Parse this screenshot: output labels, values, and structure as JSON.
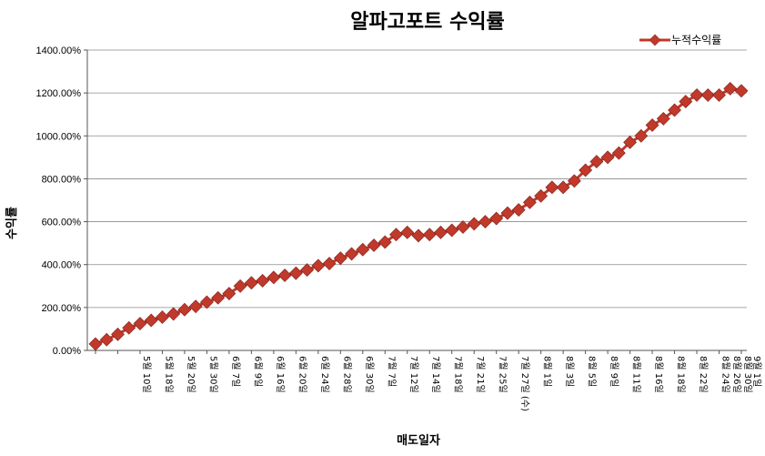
{
  "chart_data": {
    "type": "line",
    "title": "알파고포트 수익률",
    "xlabel": "매도일자",
    "ylabel": "수익률",
    "ylim": [
      0,
      1400
    ],
    "y_ticks": [
      "0.00%",
      "200.00%",
      "400.00%",
      "600.00%",
      "800.00%",
      "1000.00%",
      "1200.00%",
      "1400.00%"
    ],
    "grid": true,
    "legend_position": "top-right",
    "series": [
      {
        "name": "누적수익률",
        "color": "#c0392b",
        "marker": "diamond",
        "values": [
          30,
          50,
          75,
          105,
          125,
          140,
          155,
          170,
          190,
          205,
          225,
          245,
          265,
          300,
          315,
          325,
          340,
          350,
          360,
          375,
          395,
          405,
          430,
          450,
          470,
          490,
          505,
          540,
          550,
          535,
          540,
          550,
          560,
          575,
          590,
          600,
          615,
          640,
          655,
          690,
          720,
          760,
          760,
          790,
          840,
          880,
          900,
          920,
          970,
          1000,
          1050,
          1080,
          1120,
          1160,
          1190,
          1190,
          1190,
          1220,
          1210
        ]
      }
    ],
    "x_labels": [
      {
        "text": "5월 10일",
        "i": 4
      },
      {
        "text": "5월 18일",
        "i": 6
      },
      {
        "text": "5월 20일",
        "i": 8
      },
      {
        "text": "5월 30일",
        "i": 10
      },
      {
        "text": "6월 7일",
        "i": 12
      },
      {
        "text": "6월 9일",
        "i": 14
      },
      {
        "text": "6월 16일",
        "i": 16
      },
      {
        "text": "6월 20일",
        "i": 18
      },
      {
        "text": "6월 24일",
        "i": 20
      },
      {
        "text": "6월 28일",
        "i": 22
      },
      {
        "text": "6월 30일",
        "i": 24
      },
      {
        "text": "7월 7일",
        "i": 26
      },
      {
        "text": "7월 12일",
        "i": 28
      },
      {
        "text": "7월 14일",
        "i": 30
      },
      {
        "text": "7월 18일",
        "i": 32
      },
      {
        "text": "7월 21일",
        "i": 34
      },
      {
        "text": "7월 25일",
        "i": 36
      },
      {
        "text": "7월 27일 (수)",
        "i": 38
      },
      {
        "text": "8월 1일",
        "i": 40
      },
      {
        "text": "8월 3일",
        "i": 42
      },
      {
        "text": "8월 5일",
        "i": 44
      },
      {
        "text": "8월 9일",
        "i": 46
      },
      {
        "text": "8월 11일",
        "i": 48
      },
      {
        "text": "8월 16일",
        "i": 50
      },
      {
        "text": "8월 18일",
        "i": 52
      },
      {
        "text": "8월 22일",
        "i": 54
      },
      {
        "text": "8월 24일",
        "i": 56
      },
      {
        "text": "8월 26일",
        "i": 57
      },
      {
        "text": "8월 30일",
        "i": 58
      },
      {
        "text": "9월 1일",
        "i": 58
      }
    ]
  }
}
